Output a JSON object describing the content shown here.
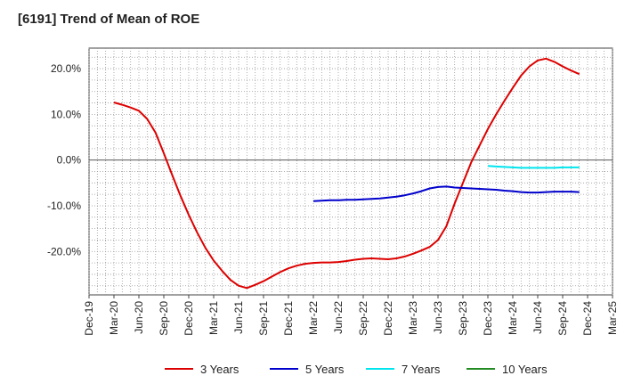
{
  "chart_data": {
    "type": "line",
    "title": "[6191]  Trend of Mean of ROE",
    "xlabel": "",
    "ylabel": "",
    "x": [
      "Dec-19",
      "Mar-20",
      "Jun-20",
      "Sep-20",
      "Dec-20",
      "Mar-21",
      "Jun-21",
      "Sep-21",
      "Dec-21",
      "Mar-22",
      "Jun-22",
      "Sep-22",
      "Dec-22",
      "Mar-23",
      "Jun-23",
      "Sep-23",
      "Dec-23",
      "Mar-24",
      "Jun-24",
      "Sep-24",
      "Dec-24",
      "Mar-25"
    ],
    "ylim": [
      -29.5,
      24.5
    ],
    "yticks": [
      20,
      10,
      0,
      -10,
      -20
    ],
    "ytick_labels": [
      "20.0%",
      "10.0%",
      "0.0%",
      "-10.0%",
      "-20.0%"
    ],
    "grid": true,
    "legend_position": "bottom",
    "series": [
      {
        "name": "3 Years",
        "color": "#dd0000",
        "points": [
          [
            "Mar-20",
            12.6
          ],
          [
            "Apr-20",
            12.1
          ],
          [
            "May-20",
            11.5
          ],
          [
            "Jun-20",
            10.8
          ],
          [
            "Jul-20",
            9.0
          ],
          [
            "Aug-20",
            6.0
          ],
          [
            "Sep-20",
            1.5
          ],
          [
            "Oct-20",
            -3.2
          ],
          [
            "Nov-20",
            -7.8
          ],
          [
            "Dec-20",
            -12.0
          ],
          [
            "Jan-21",
            -15.8
          ],
          [
            "Feb-21",
            -19.2
          ],
          [
            "Mar-21",
            -22.0
          ],
          [
            "Apr-21",
            -24.2
          ],
          [
            "May-21",
            -26.2
          ],
          [
            "Jun-21",
            -27.5
          ],
          [
            "Jul-21",
            -28.0
          ],
          [
            "Aug-21",
            -27.3
          ],
          [
            "Sep-21",
            -26.5
          ],
          [
            "Oct-21",
            -25.5
          ],
          [
            "Nov-21",
            -24.5
          ],
          [
            "Dec-21",
            -23.7
          ],
          [
            "Jan-22",
            -23.1
          ],
          [
            "Feb-22",
            -22.7
          ],
          [
            "Mar-22",
            -22.5
          ],
          [
            "Apr-22",
            -22.4
          ],
          [
            "May-22",
            -22.4
          ],
          [
            "Jun-22",
            -22.3
          ],
          [
            "Jul-22",
            -22.1
          ],
          [
            "Aug-22",
            -21.8
          ],
          [
            "Sep-22",
            -21.6
          ],
          [
            "Oct-22",
            -21.5
          ],
          [
            "Nov-22",
            -21.6
          ],
          [
            "Dec-22",
            -21.7
          ],
          [
            "Jan-23",
            -21.5
          ],
          [
            "Feb-23",
            -21.1
          ],
          [
            "Mar-23",
            -20.5
          ],
          [
            "Apr-23",
            -19.8
          ],
          [
            "May-23",
            -19.0
          ],
          [
            "Jun-23",
            -17.5
          ],
          [
            "Jul-23",
            -14.5
          ],
          [
            "Aug-23",
            -9.5
          ],
          [
            "Sep-23",
            -5.0
          ],
          [
            "Oct-23",
            -0.5
          ],
          [
            "Nov-23",
            3.2
          ],
          [
            "Dec-23",
            6.8
          ],
          [
            "Jan-24",
            10.0
          ],
          [
            "Feb-24",
            13.0
          ],
          [
            "Mar-24",
            15.8
          ],
          [
            "Apr-24",
            18.5
          ],
          [
            "May-24",
            20.5
          ],
          [
            "Jun-24",
            21.8
          ],
          [
            "Jul-24",
            22.2
          ],
          [
            "Aug-24",
            21.5
          ],
          [
            "Sep-24",
            20.5
          ],
          [
            "Oct-24",
            19.6
          ],
          [
            "Nov-24",
            18.8
          ]
        ]
      },
      {
        "name": "5 Years",
        "color": "#0000cc",
        "points": [
          [
            "Mar-22",
            -9.0
          ],
          [
            "Apr-22",
            -8.9
          ],
          [
            "May-22",
            -8.8
          ],
          [
            "Jun-22",
            -8.8
          ],
          [
            "Jul-22",
            -8.7
          ],
          [
            "Aug-22",
            -8.7
          ],
          [
            "Sep-22",
            -8.6
          ],
          [
            "Oct-22",
            -8.5
          ],
          [
            "Nov-22",
            -8.4
          ],
          [
            "Dec-22",
            -8.2
          ],
          [
            "Jan-23",
            -8.0
          ],
          [
            "Feb-23",
            -7.7
          ],
          [
            "Mar-23",
            -7.3
          ],
          [
            "Apr-23",
            -6.8
          ],
          [
            "May-23",
            -6.2
          ],
          [
            "Jun-23",
            -5.9
          ],
          [
            "Jul-23",
            -5.8
          ],
          [
            "Aug-23",
            -6.0
          ],
          [
            "Sep-23",
            -6.1
          ],
          [
            "Oct-23",
            -6.2
          ],
          [
            "Nov-23",
            -6.3
          ],
          [
            "Dec-23",
            -6.4
          ],
          [
            "Jan-24",
            -6.5
          ],
          [
            "Feb-24",
            -6.7
          ],
          [
            "Mar-24",
            -6.8
          ],
          [
            "Apr-24",
            -7.0
          ],
          [
            "May-24",
            -7.1
          ],
          [
            "Jun-24",
            -7.1
          ],
          [
            "Jul-24",
            -7.0
          ],
          [
            "Aug-24",
            -6.9
          ],
          [
            "Sep-24",
            -6.9
          ],
          [
            "Oct-24",
            -6.9
          ],
          [
            "Nov-24",
            -7.0
          ]
        ]
      },
      {
        "name": "7 Years",
        "color": "#00e5ee",
        "points": [
          [
            "Dec-23",
            -1.3
          ],
          [
            "Jan-24",
            -1.4
          ],
          [
            "Feb-24",
            -1.5
          ],
          [
            "Mar-24",
            -1.6
          ],
          [
            "Apr-24",
            -1.7
          ],
          [
            "May-24",
            -1.7
          ],
          [
            "Jun-24",
            -1.7
          ],
          [
            "Jul-24",
            -1.7
          ],
          [
            "Aug-24",
            -1.7
          ],
          [
            "Sep-24",
            -1.6
          ],
          [
            "Oct-24",
            -1.6
          ],
          [
            "Nov-24",
            -1.6
          ]
        ]
      },
      {
        "name": "10 Years",
        "color": "#228b22",
        "points": []
      }
    ]
  }
}
